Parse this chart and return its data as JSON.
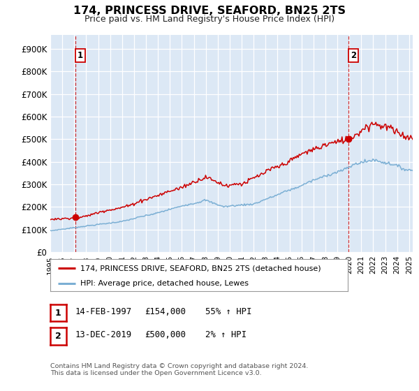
{
  "title": "174, PRINCESS DRIVE, SEAFORD, BN25 2TS",
  "subtitle": "Price paid vs. HM Land Registry's House Price Index (HPI)",
  "yticks": [
    0,
    100000,
    200000,
    300000,
    400000,
    500000,
    600000,
    700000,
    800000,
    900000
  ],
  "ytick_labels": [
    "£0",
    "£100K",
    "£200K",
    "£300K",
    "£400K",
    "£500K",
    "£600K",
    "£700K",
    "£800K",
    "£900K"
  ],
  "ylim": [
    0,
    960000
  ],
  "xlim_start": 1995.0,
  "xlim_end": 2025.3,
  "xtick_years": [
    1995,
    1996,
    1997,
    1998,
    1999,
    2000,
    2001,
    2002,
    2003,
    2004,
    2005,
    2006,
    2007,
    2008,
    2009,
    2010,
    2011,
    2012,
    2013,
    2014,
    2015,
    2016,
    2017,
    2018,
    2019,
    2020,
    2021,
    2022,
    2023,
    2024,
    2025
  ],
  "fig_bg": "#f0f0f0",
  "plot_bg": "#dce8f5",
  "grid_color": "#ffffff",
  "red_color": "#cc0000",
  "blue_color": "#7bafd4",
  "sale1_x": 1997.12,
  "sale1_y": 154000,
  "sale2_x": 2019.95,
  "sale2_y": 500000,
  "legend_line1": "174, PRINCESS DRIVE, SEAFORD, BN25 2TS (detached house)",
  "legend_line2": "HPI: Average price, detached house, Lewes",
  "ann1_num": "1",
  "ann1_date": "14-FEB-1997",
  "ann1_price": "£154,000",
  "ann1_hpi": "55% ↑ HPI",
  "ann2_num": "2",
  "ann2_date": "13-DEC-2019",
  "ann2_price": "£500,000",
  "ann2_hpi": "2% ↑ HPI",
  "footer": "Contains HM Land Registry data © Crown copyright and database right 2024.\nThis data is licensed under the Open Government Licence v3.0."
}
